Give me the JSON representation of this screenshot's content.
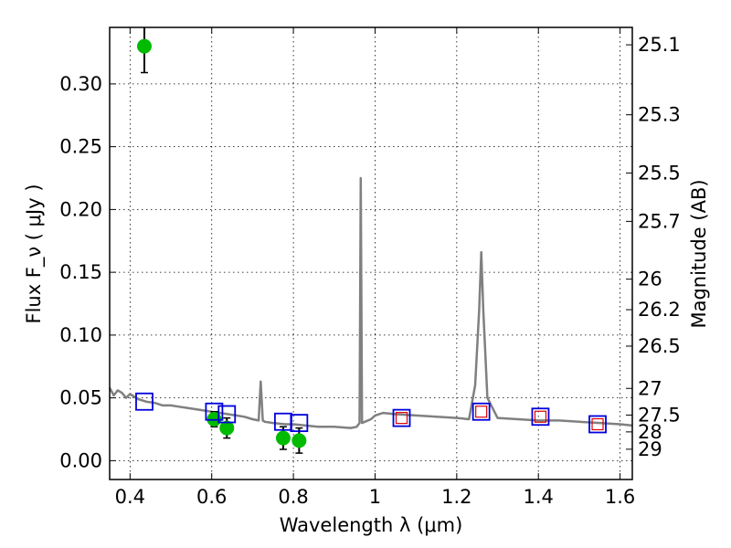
{
  "chart_data": {
    "type": "scatter",
    "xlabel": "Wavelength  λ (μm)",
    "ylabel": "Flux  F_ν  ( μJy )",
    "ylabel_right": "Magnitude (AB)",
    "xlim": [
      0.35,
      1.63
    ],
    "ylim": [
      -0.015,
      0.345
    ],
    "grid": true,
    "x_ticks": [
      {
        "value": 0.4,
        "label": "0.4"
      },
      {
        "value": 0.6,
        "label": "0.6"
      },
      {
        "value": 0.8,
        "label": "0.8"
      },
      {
        "value": 1.0,
        "label": "1"
      },
      {
        "value": 1.2,
        "label": "1.2"
      },
      {
        "value": 1.4,
        "label": "1.4"
      },
      {
        "value": 1.6,
        "label": "1.6"
      }
    ],
    "y_ticks": [
      {
        "value": 0.0,
        "label": "0.00"
      },
      {
        "value": 0.05,
        "label": "0.05"
      },
      {
        "value": 0.1,
        "label": "0.10"
      },
      {
        "value": 0.15,
        "label": "0.15"
      },
      {
        "value": 0.2,
        "label": "0.20"
      },
      {
        "value": 0.25,
        "label": "0.25"
      },
      {
        "value": 0.3,
        "label": "0.30"
      }
    ],
    "mag_ticks": [
      {
        "value": 25.1,
        "label": "25.1"
      },
      {
        "value": 25.3,
        "label": "25.3"
      },
      {
        "value": 25.5,
        "label": "25.5"
      },
      {
        "value": 25.7,
        "label": "25.7"
      },
      {
        "value": 26,
        "label": "26"
      },
      {
        "value": 26.2,
        "label": "26.2"
      },
      {
        "value": 26.5,
        "label": "26.5"
      },
      {
        "value": 27,
        "label": "27"
      },
      {
        "value": 27.5,
        "label": "27.5"
      },
      {
        "value": 28,
        "label": "28"
      },
      {
        "value": 29,
        "label": "29"
      }
    ],
    "spectrum": {
      "name": "model-spectrum",
      "color": "#808080",
      "x": [
        0.35,
        0.36,
        0.37,
        0.38,
        0.39,
        0.4,
        0.42,
        0.44,
        0.46,
        0.48,
        0.5,
        0.52,
        0.54,
        0.56,
        0.58,
        0.6,
        0.62,
        0.64,
        0.66,
        0.68,
        0.7,
        0.715,
        0.72,
        0.725,
        0.73,
        0.75,
        0.78,
        0.8,
        0.83,
        0.86,
        0.9,
        0.94,
        0.955,
        0.962,
        0.965,
        0.968,
        0.975,
        0.99,
        1.0,
        1.02,
        1.05,
        1.1,
        1.15,
        1.2,
        1.23,
        1.245,
        1.255,
        1.26,
        1.265,
        1.275,
        1.3,
        1.35,
        1.4,
        1.45,
        1.5,
        1.55,
        1.6,
        1.63
      ],
      "y": [
        0.058,
        0.052,
        0.056,
        0.054,
        0.05,
        0.053,
        0.049,
        0.047,
        0.046,
        0.044,
        0.044,
        0.043,
        0.042,
        0.041,
        0.04,
        0.039,
        0.038,
        0.037,
        0.036,
        0.035,
        0.033,
        0.032,
        0.063,
        0.032,
        0.031,
        0.03,
        0.029,
        0.029,
        0.028,
        0.027,
        0.027,
        0.026,
        0.027,
        0.03,
        0.225,
        0.03,
        0.031,
        0.033,
        0.036,
        0.038,
        0.037,
        0.036,
        0.035,
        0.034,
        0.033,
        0.06,
        0.12,
        0.166,
        0.12,
        0.05,
        0.034,
        0.033,
        0.032,
        0.032,
        0.031,
        0.03,
        0.029,
        0.028
      ]
    },
    "series": [
      {
        "name": "observed-flux",
        "color": "#00bb00",
        "marker": "circle",
        "points": [
          {
            "x": 0.435,
            "y": 0.33,
            "err": 0.021
          },
          {
            "x": 0.606,
            "y": 0.033,
            "err": 0.006
          },
          {
            "x": 0.637,
            "y": 0.026,
            "err": 0.008
          },
          {
            "x": 0.775,
            "y": 0.018,
            "err": 0.009
          },
          {
            "x": 0.814,
            "y": 0.016,
            "err": 0.01
          }
        ]
      },
      {
        "name": "model-photometry",
        "color": "#0000dd",
        "marker": "square",
        "points": [
          {
            "x": 0.435,
            "y": 0.047
          },
          {
            "x": 0.606,
            "y": 0.039
          },
          {
            "x": 0.637,
            "y": 0.037
          },
          {
            "x": 0.775,
            "y": 0.031
          },
          {
            "x": 0.814,
            "y": 0.03
          },
          {
            "x": 1.065,
            "y": 0.034
          },
          {
            "x": 1.26,
            "y": 0.039
          },
          {
            "x": 1.405,
            "y": 0.035
          },
          {
            "x": 1.545,
            "y": 0.029
          }
        ]
      },
      {
        "name": "model-photometry-ir",
        "color": "#dd0000",
        "marker": "small-square",
        "points": [
          {
            "x": 1.065,
            "y": 0.034
          },
          {
            "x": 1.26,
            "y": 0.039
          },
          {
            "x": 1.405,
            "y": 0.035
          },
          {
            "x": 1.545,
            "y": 0.029
          }
        ]
      }
    ]
  }
}
